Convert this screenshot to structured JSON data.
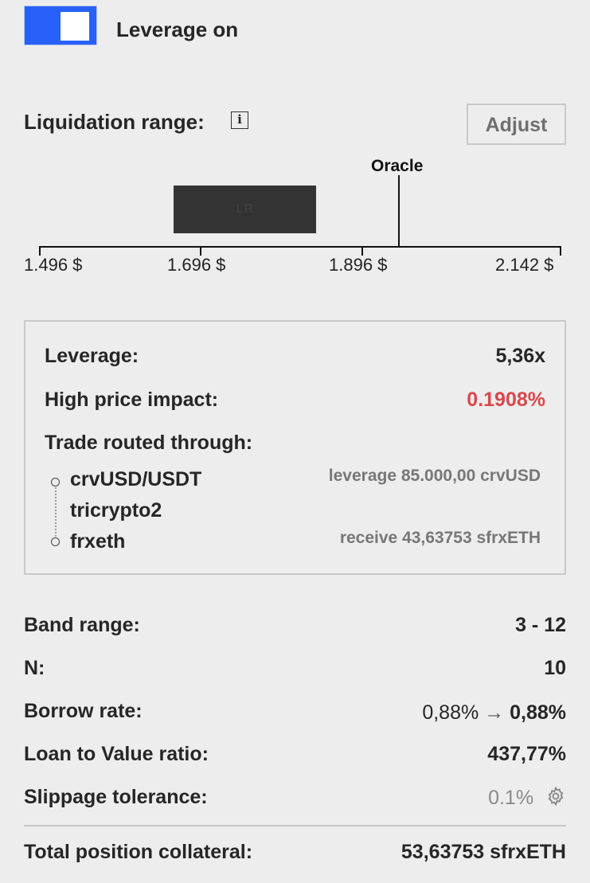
{
  "leverage_toggle": {
    "label": "Leverage on",
    "on": true,
    "accent": "#2761f9"
  },
  "liquidation": {
    "title": "Liquidation range:",
    "info_icon": "info-icon",
    "adjust_label": "Adjust",
    "oracle_label": "Oracle",
    "bar_label": "LR",
    "axis_ticks": [
      "1.496 $",
      "1.696 $",
      "1.896 $",
      "2.142 $"
    ]
  },
  "details": {
    "leverage_label": "Leverage:",
    "leverage_value": "5,36x",
    "price_impact_label": "High price impact:",
    "price_impact_value": "0.1908%",
    "route_label": "Trade routed through:",
    "route": [
      {
        "name": "crvUSD/USDT",
        "note": "leverage 85.000,00 crvUSD"
      },
      {
        "name": "tricrypto2",
        "note": ""
      },
      {
        "name": "frxeth",
        "note": "receive 43,63753 sfrxETH"
      }
    ]
  },
  "summary": {
    "band_range_label": "Band range:",
    "band_range_value": "3 - 12",
    "n_label": "N:",
    "n_value": "10",
    "borrow_rate_label": "Borrow rate:",
    "borrow_rate_from": "0,88%",
    "borrow_rate_arrow": "→",
    "borrow_rate_to": "0,88%",
    "ltv_label": "Loan to Value ratio:",
    "ltv_value": "437,77%",
    "slippage_label": "Slippage tolerance:",
    "slippage_value": "0.1%",
    "slippage_icon": "gear-icon",
    "total_label": "Total position collateral:",
    "total_value": "53,63753 sfrxETH"
  },
  "colors": {
    "warning": "#d9484d",
    "text": "#262626",
    "muted": "#8a8a8a"
  }
}
